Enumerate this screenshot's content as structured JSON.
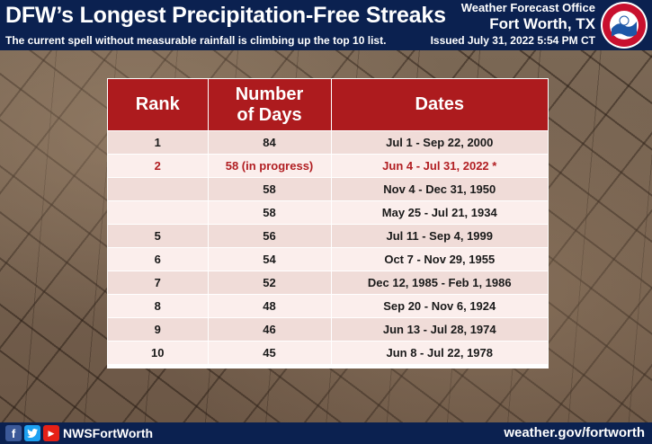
{
  "header": {
    "title": "DFW’s Longest Precipitation-Free Streaks",
    "subtitle": "The current spell without measurable rainfall is climbing up the top 10 list.",
    "office_line1": "Weather Forecast Office",
    "office_line2": "Fort Worth, TX",
    "issued": "Issued July 31, 2022 5:54 PM CT",
    "logo_text": "NATIONAL WEATHER SERVICE"
  },
  "table": {
    "headers": [
      "Rank",
      "Number of Days",
      "Dates"
    ],
    "header_days_line1": "Number",
    "header_days_line2": "of Days",
    "rows": [
      {
        "rank": "1",
        "days": "84",
        "dates": "Jul 1 - Sep 22, 2000"
      },
      {
        "rank": "2",
        "days": "58 (in progress)",
        "dates": "Jun 4 - Jul 31, 2022 *"
      },
      {
        "rank": "",
        "days": "58",
        "dates": "Nov 4 - Dec 31, 1950"
      },
      {
        "rank": "",
        "days": "58",
        "dates": "May 25 - Jul 21, 1934"
      },
      {
        "rank": "5",
        "days": "56",
        "dates": "Jul 11 - Sep 4, 1999"
      },
      {
        "rank": "6",
        "days": "54",
        "dates": "Oct 7 - Nov 29, 1955"
      },
      {
        "rank": "7",
        "days": "52",
        "dates": "Dec 12, 1985 - Feb 1, 1986"
      },
      {
        "rank": "8",
        "days": "48",
        "dates": "Sep 20 - Nov 6, 1924"
      },
      {
        "rank": "9",
        "days": "46",
        "dates": "Jun 13 - Jul 28, 1974"
      },
      {
        "rank": "10",
        "days": "45",
        "dates": "Jun 8 - Jul 22, 1978"
      }
    ],
    "highlight_row": 1
  },
  "footer": {
    "social_icons": [
      "facebook-icon",
      "twitter-icon",
      "youtube-icon"
    ],
    "handle": "NWSFortWorth",
    "website": "weather.gov/fortworth"
  },
  "colors": {
    "header_bg": "#0b2150",
    "table_header": "#ad1b1e",
    "highlight_text": "#b11e22",
    "row_odd": "#f0dcd8",
    "row_even": "#fbeeec"
  }
}
